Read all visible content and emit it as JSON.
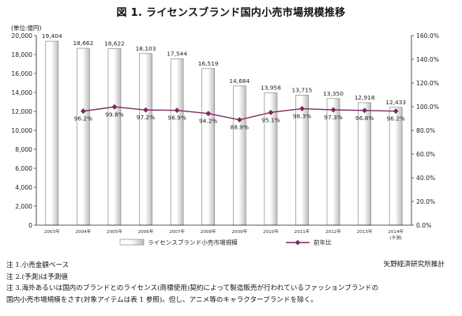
{
  "title": "図 1.  ライセンスブランド国内小売市場規模推移",
  "source": "矢野経済研究所推計",
  "notes": [
    "注 1.小売金額ベース",
    "注 2.(予測)は予測値",
    "注 3.海外あるいは国内のブランドとのライセンス(商標使用)契約によって製造販売が行われているファッションブランドの",
    "国内小売市場規模をさす(対象アイテムは表 1 参照)。但し、アニメ等のキャラクターブランドを除く。"
  ],
  "colors": {
    "bar_fill_light": "#ffffff",
    "bar_fill_dark": "#bdbdbd",
    "bar_stroke": "#8a8a8a",
    "line": "#7b2a5c",
    "axis": "#222222",
    "grid": "#d9d9d9"
  },
  "chart_data": {
    "type": "bar",
    "ylabel": "(単位:億円)",
    "categories": [
      "2003年",
      "2004年",
      "2005年",
      "2006年",
      "2007年",
      "2008年",
      "2009年",
      "2010年",
      "2011年",
      "2012年",
      "2013年",
      "2014年"
    ],
    "category_notes": [
      "",
      "",
      "",
      "",
      "",
      "",
      "",
      "",
      "",
      "",
      "",
      "(予測)"
    ],
    "left_axis": {
      "min": 0,
      "max": 20000,
      "step": 2000,
      "ticks": [
        "0",
        "2,000",
        "4,000",
        "6,000",
        "8,000",
        "10,000",
        "12,000",
        "14,000",
        "16,000",
        "18,000",
        "20,000"
      ]
    },
    "right_axis": {
      "min": 0,
      "max": 160,
      "step": 20,
      "ticks": [
        "0.0%",
        "20.0%",
        "40.0%",
        "60.0%",
        "80.0%",
        "100.0%",
        "120.0%",
        "140.0%",
        "160.0%"
      ]
    },
    "series": [
      {
        "name": "ライセンスブランド小売市場規模",
        "type": "bar",
        "axis": "left",
        "values": [
          19404,
          18662,
          18622,
          18103,
          17544,
          16519,
          14684,
          13958,
          13715,
          13350,
          12918,
          12433
        ],
        "labels": [
          "19,404",
          "18,662",
          "18,622",
          "18,103",
          "17,544",
          "16,519",
          "14,684",
          "13,958",
          "13,715",
          "13,350",
          "12,918",
          "12,433"
        ]
      },
      {
        "name": "前年比",
        "type": "line",
        "axis": "right",
        "values": [
          null,
          96.2,
          99.8,
          97.2,
          96.9,
          94.2,
          88.9,
          95.1,
          98.3,
          97.3,
          96.8,
          96.2
        ],
        "labels": [
          "",
          "96.2%",
          "99.8%",
          "97.2%",
          "96.9%",
          "94.2%",
          "88.9%",
          "95.1%",
          "98.3%",
          "97.3%",
          "96.8%",
          "96.2%"
        ]
      }
    ],
    "legend": "bottom-center",
    "grid": false
  }
}
